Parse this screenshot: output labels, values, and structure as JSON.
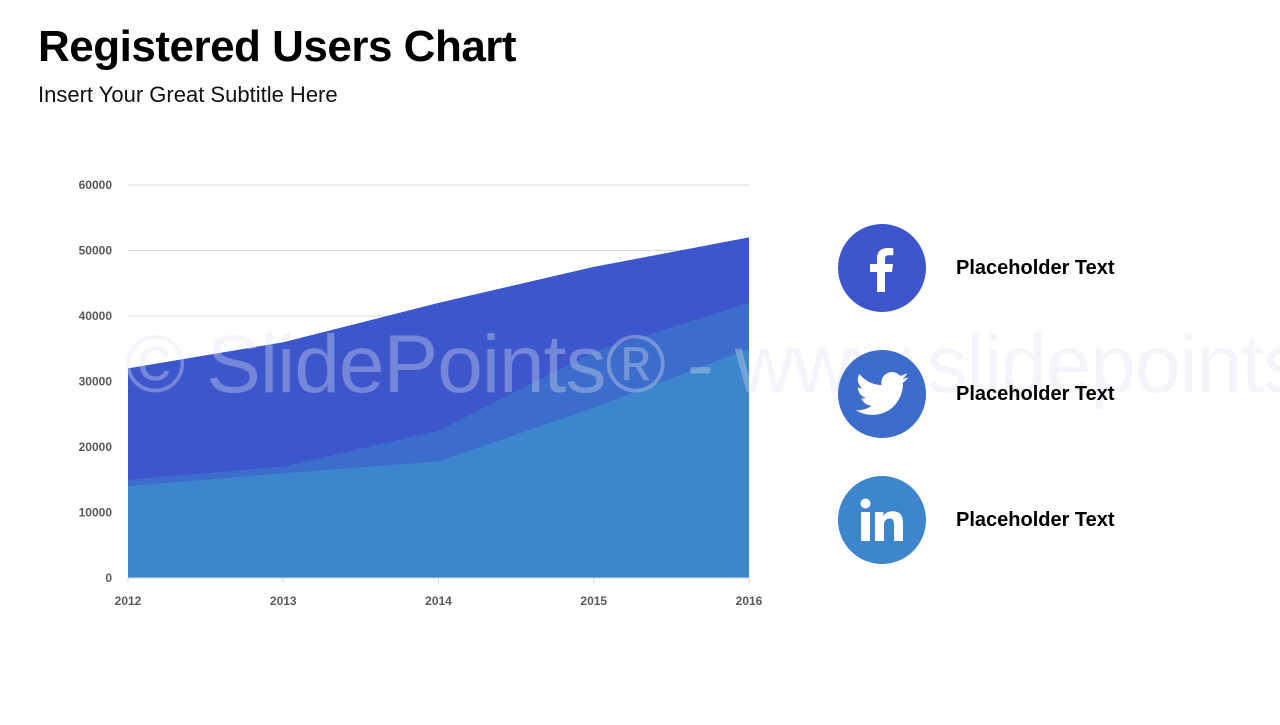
{
  "header": {
    "title": "Registered Users Chart",
    "subtitle": "Insert Your Great Subtitle Here"
  },
  "colors": {
    "series_top": "#3d56cc",
    "series_mid": "#3d6dcc",
    "series_bottom": "#3d85cc",
    "facebook": "#3d56cc",
    "twitter": "#3d6dcc",
    "linkedin": "#3d85cc",
    "gridline": "#d9d9d9",
    "axis_text": "#595959"
  },
  "legend": {
    "items": [
      {
        "icon": "facebook-icon",
        "label": "Placeholder Text"
      },
      {
        "icon": "twitter-icon",
        "label": "Placeholder Text"
      },
      {
        "icon": "linkedin-icon",
        "label": "Placeholder Text"
      }
    ]
  },
  "watermark": "© SlidePoints® - www.slidepoints.co",
  "chart_data": {
    "type": "area",
    "title": "Registered Users Chart",
    "subtitle": "Insert Your Great Subtitle Here",
    "xlabel": "",
    "ylabel": "",
    "categories": [
      "2012",
      "2013",
      "2014",
      "2015",
      "2016"
    ],
    "series": [
      {
        "name": "Facebook",
        "color": "#3d56cc",
        "values": [
          32000,
          36000,
          42000,
          47500,
          52000
        ]
      },
      {
        "name": "Twitter",
        "color": "#3d6dcc",
        "values": [
          15000,
          17000,
          22500,
          34500,
          42000
        ]
      },
      {
        "name": "LinkedIn",
        "color": "#3d85cc",
        "values": [
          14000,
          16000,
          17800,
          26000,
          35000
        ]
      }
    ],
    "yticks": [
      "0",
      "10000",
      "20000",
      "30000",
      "40000",
      "50000",
      "60000"
    ],
    "ylim": [
      0,
      60000
    ],
    "grid": true,
    "legend_position": "right"
  }
}
